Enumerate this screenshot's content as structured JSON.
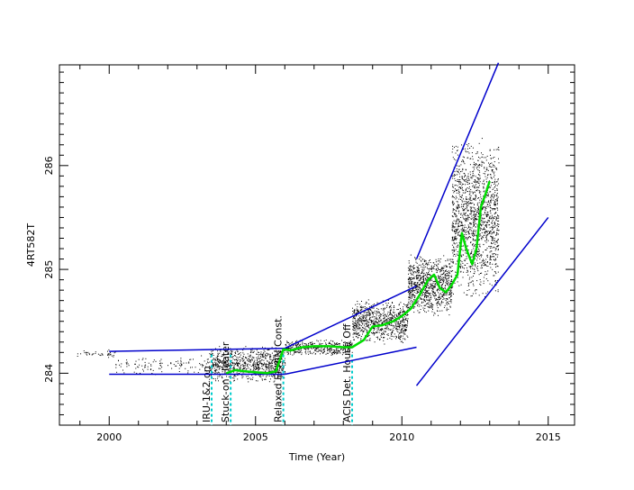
{
  "chart_data": {
    "type": "scatter",
    "xlabel": "Time (Year)",
    "ylabel": "4RT582T",
    "xlim": [
      1998.3,
      2015.9
    ],
    "ylim": [
      283.5,
      286.97
    ],
    "x_ticks": [
      2000,
      2005,
      2010,
      2015
    ],
    "y_ticks": [
      284,
      285,
      286
    ],
    "grid": false,
    "colors": {
      "points": "#000000",
      "trend": "#00dd00",
      "envelope": "#0000cc",
      "events": "#00cccc"
    },
    "events": [
      {
        "x": 2003.5,
        "label": "IRU-1&2 on"
      },
      {
        "x": 2004.15,
        "label": "Stuck-on Heater"
      },
      {
        "x": 2005.95,
        "label": "Relaxed EPHIN Const."
      },
      {
        "x": 2008.3,
        "label": "ACIS Det. House Off"
      }
    ],
    "envelope_lines": [
      {
        "x": [
          2000,
          2006
        ],
        "y": [
          284.21,
          284.24
        ]
      },
      {
        "x": [
          2000,
          2006
        ],
        "y": [
          283.99,
          283.99
        ]
      },
      {
        "x": [
          2006,
          2010.5
        ],
        "y": [
          284.24,
          284.84
        ]
      },
      {
        "x": [
          2006,
          2010.5
        ],
        "y": [
          283.99,
          284.25
        ]
      },
      {
        "x": [
          2010.5,
          2013.3
        ],
        "y": [
          285.1,
          286.99
        ]
      },
      {
        "x": [
          2010.5,
          2015
        ],
        "y": [
          283.88,
          285.5
        ]
      }
    ],
    "trend": {
      "x": [
        2004.0,
        2004.3,
        2004.6,
        2005.0,
        2005.4,
        2005.7,
        2005.95,
        2006.2,
        2006.6,
        2007.0,
        2007.5,
        2008.0,
        2008.3,
        2008.7,
        2009.0,
        2009.3,
        2009.7,
        2010.0,
        2010.3,
        2010.6,
        2010.9,
        2011.1,
        2011.3,
        2011.5,
        2011.7,
        2011.9,
        2012.05,
        2012.2,
        2012.4,
        2012.55,
        2012.7,
        2012.85,
        2013.0
      ],
      "y": [
        284.0,
        284.03,
        284.02,
        284.01,
        284.0,
        284.02,
        284.23,
        284.22,
        284.25,
        284.26,
        284.26,
        284.25,
        284.25,
        284.32,
        284.45,
        284.46,
        284.5,
        284.55,
        284.62,
        284.75,
        284.9,
        284.95,
        284.82,
        284.78,
        284.85,
        284.95,
        285.35,
        285.2,
        285.05,
        285.2,
        285.6,
        285.72,
        285.85
      ]
    },
    "scatter_segments": [
      {
        "x": [
          1998.9,
          2000.2
        ],
        "center": 284.19,
        "spread": 0.05,
        "count": 40
      },
      {
        "x": [
          2000.2,
          2003.4
        ],
        "center": 284.08,
        "spread": 0.1,
        "count": 120
      },
      {
        "x": [
          2003.4,
          2006.0
        ],
        "center": 284.09,
        "spread": 0.18,
        "count": 800
      },
      {
        "x": [
          2006.0,
          2008.3
        ],
        "center": 284.25,
        "spread": 0.08,
        "count": 400
      },
      {
        "x": [
          2008.3,
          2010.2
        ],
        "center": 284.5,
        "spread": 0.22,
        "count": 800
      },
      {
        "x": [
          2010.2,
          2011.7
        ],
        "center": 284.85,
        "spread": 0.3,
        "count": 900
      },
      {
        "x": [
          2011.7,
          2013.3
        ],
        "center": 285.5,
        "spread": 0.8,
        "count": 1500
      }
    ]
  }
}
